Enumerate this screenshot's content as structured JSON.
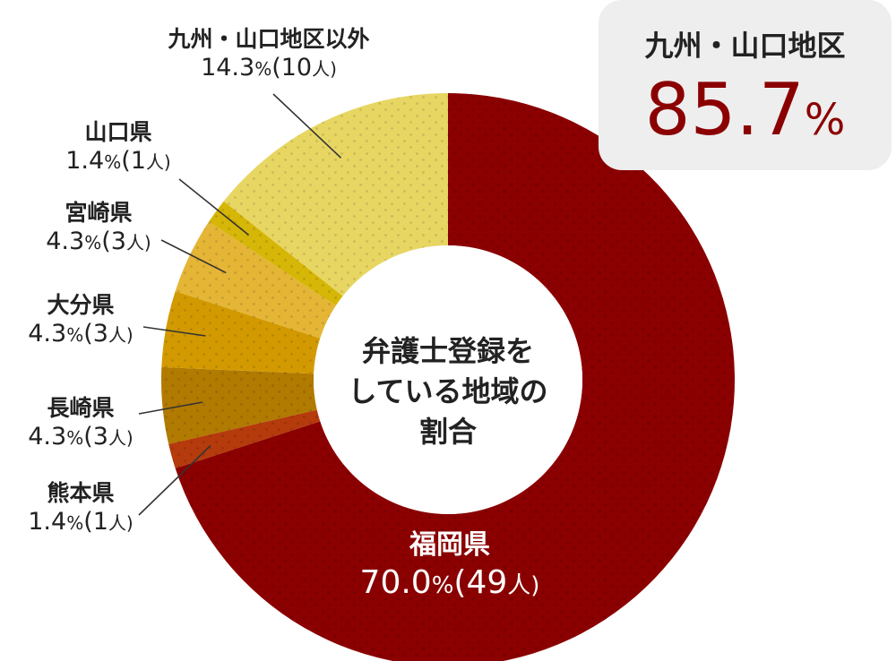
{
  "chart_data": {
    "type": "pie",
    "donut": true,
    "center_label": "弁護士登録をしている地域の割合",
    "center_lines": [
      "弁護士登録を",
      "している地域の",
      "割合"
    ],
    "slices": [
      {
        "name": "福岡県",
        "pct": "70.0",
        "count": "49",
        "value": 70.0,
        "color": "#8b0000"
      },
      {
        "name": "熊本県",
        "pct": "1.4",
        "count": "1",
        "value": 1.4,
        "color": "#b53a0c"
      },
      {
        "name": "長崎県",
        "pct": "4.3",
        "count": "3",
        "value": 4.3,
        "color": "#b17a00"
      },
      {
        "name": "大分県",
        "pct": "4.3",
        "count": "3",
        "value": 4.3,
        "color": "#d29a00"
      },
      {
        "name": "宮崎県",
        "pct": "4.3",
        "count": "3",
        "value": 4.3,
        "color": "#e5b536"
      },
      {
        "name": "山口県",
        "pct": "1.4",
        "count": "1",
        "value": 1.4,
        "color": "#d6b606"
      },
      {
        "name": "九州・山口地区以外",
        "pct": "14.3",
        "count": "10",
        "value": 14.3,
        "color": "#e8d663"
      }
    ],
    "percent_symbol": "%",
    "count_open": "(",
    "count_unit": "人)",
    "summary": {
      "label": "九州・山口地区",
      "value": "85.7",
      "unit": "%"
    }
  }
}
